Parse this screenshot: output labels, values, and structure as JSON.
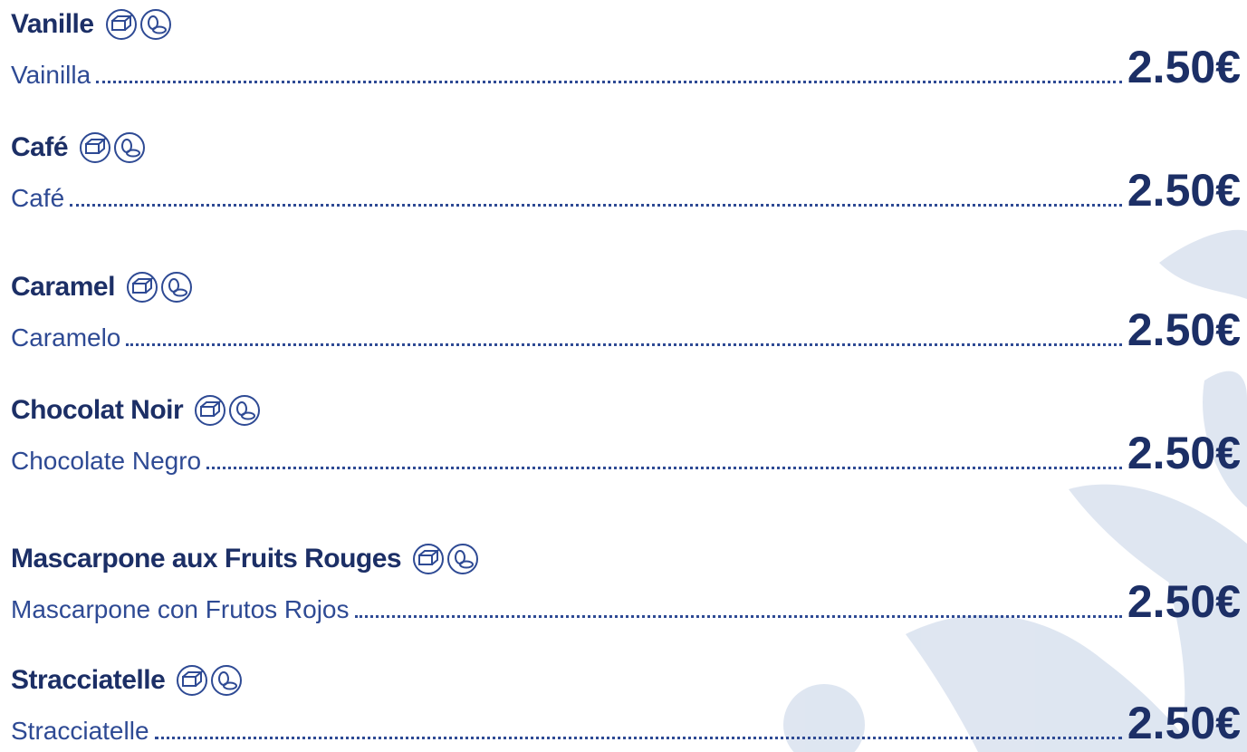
{
  "items": [
    {
      "name": "Vanille",
      "subtitle": "Vainilla",
      "price": "2.50€"
    },
    {
      "name": "Café",
      "subtitle": "Café",
      "price": "2.50€"
    },
    {
      "name": "Caramel",
      "subtitle": "Caramelo",
      "price": "2.50€"
    },
    {
      "name": "Chocolat Noir",
      "subtitle": "Chocolate Negro",
      "price": "2.50€"
    },
    {
      "name": "Mascarpone aux Fruits Rouges",
      "subtitle": "Mascarpone con Frutos Rojos",
      "price": "2.50€"
    },
    {
      "name": "Stracciatelle",
      "subtitle": "Stracciatelle",
      "price": "2.50€"
    }
  ]
}
